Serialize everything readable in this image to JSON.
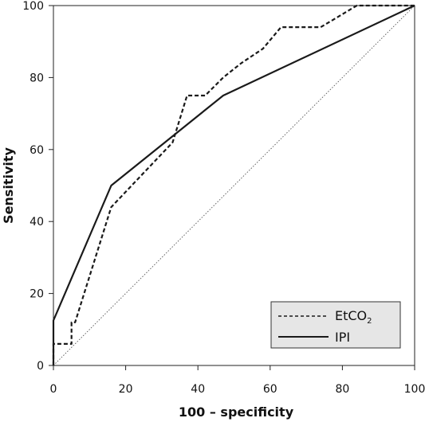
{
  "chart_data": {
    "type": "line",
    "xlabel": "100 – specificity",
    "ylabel": "Sensitivity",
    "xlim": [
      0,
      100
    ],
    "ylim": [
      0,
      100
    ],
    "x_ticks": [
      0,
      20,
      40,
      60,
      80,
      100
    ],
    "y_ticks": [
      0,
      20,
      40,
      60,
      80,
      100
    ],
    "grid": false,
    "legend_position": "bottom-right",
    "series": [
      {
        "name": "EtCO2",
        "name_base": "EtCO",
        "name_subscript": "2",
        "style": "dashed",
        "color": "#1a1a1a",
        "x": [
          0,
          0,
          5,
          5,
          5.5,
          6,
          16,
          33,
          37,
          42,
          47,
          52,
          58,
          63,
          68,
          74,
          79,
          84,
          100
        ],
        "y": [
          0,
          6,
          6,
          12,
          12,
          12,
          44,
          62,
          75,
          75,
          80,
          84,
          88,
          94,
          94,
          94,
          97,
          100,
          100
        ]
      },
      {
        "name": "IPI",
        "style": "solid",
        "color": "#1a1a1a",
        "x": [
          0,
          0,
          16,
          47,
          100
        ],
        "y": [
          0,
          12.5,
          50,
          75,
          100
        ]
      },
      {
        "name": "",
        "style": "dotted",
        "color": "#555555",
        "x": [
          0,
          100
        ],
        "y": [
          0,
          100
        ]
      }
    ]
  },
  "legend": {
    "etco2_base": "EtCO",
    "etco2_sub": "2",
    "ipi": "IPI"
  }
}
